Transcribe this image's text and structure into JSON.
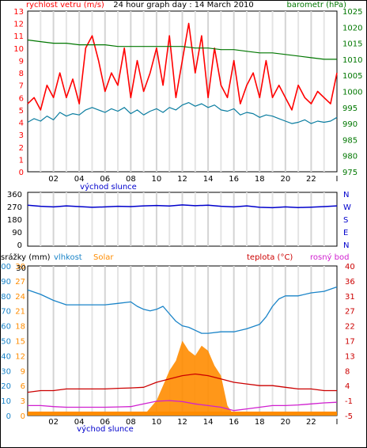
{
  "chart_data": [
    {
      "type": "line",
      "title": "24 hour graph day : 14 March 2010",
      "left_axis_label": "rychlost vetru (m/s)",
      "right_axis_label": "barometr (hPa)",
      "x_ticks": [
        "02",
        "04",
        "06",
        "08",
        "10",
        "12",
        "14",
        "16",
        "18",
        "20",
        "22",
        "I"
      ],
      "x_note": "východ slunce",
      "xlim": [
        0,
        24
      ],
      "left_ylim": [
        0,
        13
      ],
      "left_ticks": [
        0,
        1,
        2,
        3,
        4,
        5,
        6,
        7,
        8,
        9,
        10,
        11,
        12,
        13
      ],
      "right_ylim": [
        975,
        1025
      ],
      "right_ticks": [
        975,
        980,
        985,
        990,
        995,
        1000,
        1005,
        1010,
        1015,
        1020,
        1025
      ],
      "grid": true,
      "series": [
        {
          "key": "gust",
          "color": "#ff0000",
          "axis": "left",
          "x": [
            0,
            0.5,
            1,
            1.5,
            2,
            2.5,
            3,
            3.5,
            4,
            4.5,
            5,
            5.5,
            6,
            6.5,
            7,
            7.5,
            8,
            8.5,
            9,
            9.5,
            10,
            10.5,
            11,
            11.5,
            12,
            12.5,
            13,
            13.5,
            14,
            14.5,
            15,
            15.5,
            16,
            16.5,
            17,
            17.5,
            18,
            18.5,
            19,
            19.5,
            20,
            20.5,
            21,
            21.5,
            22,
            22.5,
            23,
            23.5,
            24
          ],
          "values": [
            5.5,
            6,
            5,
            7,
            6,
            8,
            6,
            7.5,
            5.5,
            10,
            11,
            9,
            6.5,
            8,
            7,
            10,
            6,
            9,
            6.5,
            8,
            10,
            7,
            11,
            6,
            9,
            12,
            8,
            11,
            6,
            10,
            7,
            6,
            9,
            5.5,
            7,
            8,
            6,
            9,
            6,
            7,
            6,
            5,
            7,
            6,
            5.5,
            6.5,
            6,
            5.5,
            8
          ]
        },
        {
          "key": "wind",
          "color": "#0a7da0",
          "axis": "left",
          "x": [
            0,
            0.5,
            1,
            1.5,
            2,
            2.5,
            3,
            3.5,
            4,
            4.5,
            5,
            5.5,
            6,
            6.5,
            7,
            7.5,
            8,
            8.5,
            9,
            9.5,
            10,
            10.5,
            11,
            11.5,
            12,
            12.5,
            13,
            13.5,
            14,
            14.5,
            15,
            15.5,
            16,
            16.5,
            17,
            17.5,
            18,
            18.5,
            19,
            19.5,
            20,
            20.5,
            21,
            21.5,
            22,
            22.5,
            23,
            23.5,
            24
          ],
          "values": [
            4,
            4.3,
            4.1,
            4.5,
            4.2,
            4.8,
            4.5,
            4.7,
            4.6,
            5,
            5.2,
            5,
            4.8,
            5.1,
            4.9,
            5.2,
            4.7,
            5,
            4.6,
            4.9,
            5.1,
            4.8,
            5.2,
            5,
            5.4,
            5.6,
            5.3,
            5.5,
            5.2,
            5.4,
            5,
            4.9,
            5.1,
            4.6,
            4.8,
            4.7,
            4.4,
            4.6,
            4.5,
            4.3,
            4.1,
            3.9,
            4,
            4.2,
            3.9,
            4.1,
            4,
            4.1,
            4.4
          ]
        },
        {
          "key": "pressure",
          "color": "#007700",
          "axis": "right",
          "x": [
            0,
            1,
            2,
            3,
            4,
            5,
            6,
            7,
            8,
            9,
            10,
            11,
            12,
            13,
            14,
            15,
            16,
            17,
            18,
            19,
            20,
            21,
            22,
            23,
            24
          ],
          "values": [
            1016,
            1015.5,
            1015,
            1015,
            1014.5,
            1014.5,
            1014.5,
            1014,
            1014,
            1014,
            1014,
            1014,
            1014,
            1013.5,
            1013.5,
            1013,
            1013,
            1012.5,
            1012,
            1012,
            1011.5,
            1011,
            1010.5,
            1010,
            1010
          ]
        }
      ]
    },
    {
      "type": "line",
      "x_ticks": [
        "02",
        "04",
        "06",
        "08",
        "10",
        "12",
        "14",
        "16",
        "18",
        "20",
        "22",
        "I"
      ],
      "left_ylim": [
        0,
        360
      ],
      "left_ticks": [
        0,
        90,
        180,
        270,
        360
      ],
      "right_ticks": [
        "N",
        "W",
        "S",
        "E",
        "N"
      ],
      "grid": true,
      "series": [
        {
          "key": "direction",
          "color": "#0000cc",
          "x": [
            0,
            1,
            2,
            3,
            4,
            5,
            6,
            7,
            8,
            9,
            10,
            11,
            12,
            13,
            14,
            15,
            16,
            17,
            18,
            19,
            20,
            21,
            22,
            23,
            24
          ],
          "values": [
            280,
            272,
            268,
            275,
            270,
            265,
            268,
            272,
            270,
            275,
            278,
            274,
            282,
            276,
            280,
            272,
            268,
            275,
            265,
            262,
            268,
            263,
            266,
            270,
            275
          ]
        }
      ]
    },
    {
      "type": "area",
      "labels": {
        "precip": "srážky (mm)",
        "humidity": "vlhkost",
        "solar": "Solar",
        "temp": "teplota (°C)",
        "dew": "rosný bod"
      },
      "x_ticks": [
        "02",
        "04",
        "06",
        "08",
        "10",
        "12",
        "14",
        "16",
        "18",
        "20",
        "22",
        "I"
      ],
      "x_note": "východ slunce",
      "precip_ticks": [
        0,
        10,
        20,
        30
      ],
      "humidity_ticks": [
        0,
        10,
        20,
        30,
        40,
        50,
        60,
        70,
        80,
        90,
        100
      ],
      "humidity_ylim": [
        0,
        100
      ],
      "solar_ticks": [
        0,
        3,
        6,
        9,
        12,
        15,
        18,
        21,
        24,
        27,
        30
      ],
      "temp_ticks": [
        -5,
        -1,
        4,
        8,
        13,
        17,
        22,
        27,
        31,
        36,
        40
      ],
      "temp_ylim": [
        -5,
        40
      ],
      "grid": true,
      "series": [
        {
          "key": "humidity",
          "color": "#1a84c8",
          "x": [
            0,
            1,
            2,
            3,
            4,
            5,
            6,
            7,
            8,
            8.5,
            9,
            9.5,
            10,
            10.5,
            11,
            11.5,
            12,
            12.5,
            13,
            13.5,
            14,
            15,
            16,
            17,
            18,
            18.5,
            19,
            19.5,
            20,
            21,
            22,
            23,
            24
          ],
          "values": [
            84,
            81,
            77,
            74,
            74,
            74,
            74,
            75,
            76,
            73,
            71,
            70,
            71,
            73,
            68,
            63,
            60,
            59,
            57,
            55,
            55,
            56,
            56,
            58,
            61,
            66,
            73,
            78,
            80,
            80,
            82,
            83,
            86
          ]
        },
        {
          "key": "temperature",
          "color": "#cc0000",
          "x": [
            0,
            1,
            2,
            3,
            4,
            5,
            6,
            7,
            8,
            9,
            10,
            11,
            12,
            13,
            14,
            15,
            16,
            17,
            18,
            19,
            20,
            21,
            22,
            23,
            24
          ],
          "values": [
            2,
            2.5,
            2.5,
            3,
            3,
            3,
            3,
            3.2,
            3.3,
            3.5,
            5,
            6,
            7,
            7.5,
            7,
            6,
            5,
            4.5,
            4,
            4,
            3.5,
            3,
            3,
            2.5,
            2.5
          ]
        },
        {
          "key": "dewpoint",
          "color": "#d020d0",
          "x": [
            0,
            1,
            2,
            3,
            4,
            5,
            6,
            7,
            8,
            9,
            10,
            11,
            12,
            13,
            14,
            15,
            16,
            17,
            18,
            19,
            20,
            21,
            22,
            23,
            24
          ],
          "values": [
            -2,
            -2,
            -2.3,
            -2.5,
            -2.5,
            -2.5,
            -2.5,
            -2.4,
            -2.3,
            -1.5,
            -0.7,
            -0.5,
            -0.8,
            -1.5,
            -2,
            -2.5,
            -3.5,
            -3,
            -2.5,
            -2,
            -2,
            -1.8,
            -1.5,
            -1.2,
            -1
          ]
        },
        {
          "key": "solar",
          "color": "#ff8c00",
          "x": [
            0,
            9,
            9.5,
            10,
            10.5,
            11,
            11.5,
            12,
            12.5,
            13,
            13.5,
            14,
            14.5,
            15,
            15.5,
            16,
            24
          ],
          "values": [
            0,
            0,
            1.5,
            3,
            6,
            9,
            11,
            15,
            13,
            12,
            14,
            13,
            10,
            8,
            2,
            0,
            0
          ]
        },
        {
          "key": "precip_band",
          "color": "#ff8c00",
          "x": [
            0,
            24
          ],
          "values": [
            1,
            1
          ]
        }
      ]
    }
  ]
}
